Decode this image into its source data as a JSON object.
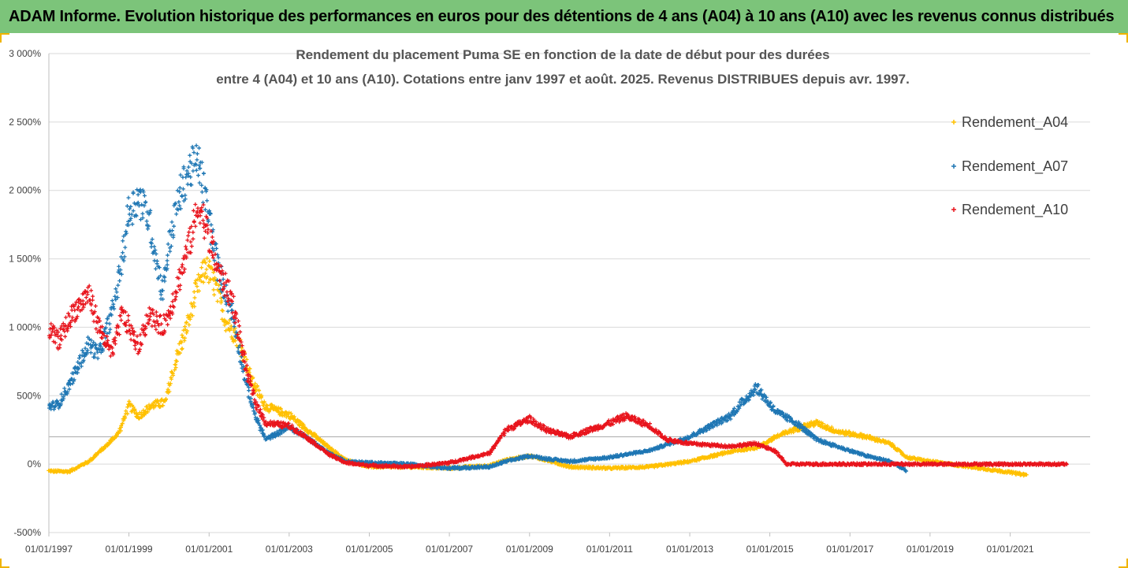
{
  "header": {
    "banner_title": "ADAM Informe. Evolution historique des performances en euros pour des détentions de 4 ans (A04) à 10 ans (A10) avec les revenus connus distribués"
  },
  "chart_data": {
    "type": "scatter",
    "title_line1": "Rendement du placement Puma SE en fonction de la date de début pour des durées",
    "title_line2": "entre 4 (A04) et 10 ans (A10). Cotations entre janv 1997 et août. 2025. Revenus DISTRIBUES depuis avr. 1997.",
    "y_ticks": [
      "3 000%",
      "2 500%",
      "2 000%",
      "1 500%",
      "1 000%",
      "500%",
      "0%",
      "-500%"
    ],
    "y_tick_values": [
      3000,
      2500,
      2000,
      1500,
      1000,
      500,
      0,
      -500
    ],
    "x_ticks": [
      "01/01/1997",
      "01/01/1999",
      "01/01/2001",
      "01/01/2003",
      "01/01/2005",
      "01/01/2007",
      "01/01/2009",
      "01/01/2011",
      "01/01/2013",
      "01/01/2015",
      "01/01/2017",
      "01/01/2019",
      "01/01/2021"
    ],
    "x_tick_years": [
      1997,
      1999,
      2001,
      2003,
      2005,
      2007,
      2009,
      2011,
      2013,
      2015,
      2017,
      2019,
      2021
    ],
    "xlim": [
      "1997-01-01",
      "2022-12-31"
    ],
    "ylim": [
      -500,
      3000
    ],
    "reference_line": 200,
    "grid": "horizontal",
    "legend_position": "right",
    "series": [
      {
        "name": "Rendement_A04",
        "color": "#ffc000",
        "points": [
          [
            "1997-01-01",
            -50
          ],
          [
            "1997-07-01",
            -55
          ],
          [
            "1998-01-01",
            20
          ],
          [
            "1998-06-01",
            130
          ],
          [
            "1998-10-01",
            230
          ],
          [
            "1999-01-01",
            430
          ],
          [
            "1999-04-01",
            350
          ],
          [
            "1999-08-01",
            430
          ],
          [
            "1999-12-01",
            450
          ],
          [
            "2000-03-01",
            750
          ],
          [
            "2000-07-01",
            1050
          ],
          [
            "2000-09-01",
            1250
          ],
          [
            "2000-12-01",
            1450
          ],
          [
            "2001-03-01",
            1300
          ],
          [
            "2001-06-01",
            1050
          ],
          [
            "2001-10-01",
            900
          ],
          [
            "2002-02-01",
            600
          ],
          [
            "2002-06-01",
            420
          ],
          [
            "2003-01-01",
            360
          ],
          [
            "2003-06-01",
            260
          ],
          [
            "2004-01-01",
            120
          ],
          [
            "2004-06-01",
            30
          ],
          [
            "2005-01-01",
            -20
          ],
          [
            "2006-01-01",
            -20
          ],
          [
            "2007-01-01",
            -30
          ],
          [
            "2008-01-01",
            -10
          ],
          [
            "2008-06-01",
            30
          ],
          [
            "2009-01-01",
            60
          ],
          [
            "2009-06-01",
            30
          ],
          [
            "2010-01-01",
            -20
          ],
          [
            "2011-01-01",
            -30
          ],
          [
            "2012-01-01",
            -20
          ],
          [
            "2013-01-01",
            20
          ],
          [
            "2014-01-01",
            90
          ],
          [
            "2014-09-01",
            120
          ],
          [
            "2015-03-01",
            200
          ],
          [
            "2015-09-01",
            260
          ],
          [
            "2016-03-01",
            300
          ],
          [
            "2016-09-01",
            240
          ],
          [
            "2017-06-01",
            200
          ],
          [
            "2018-01-01",
            150
          ],
          [
            "2018-06-01",
            50
          ],
          [
            "2019-01-01",
            20
          ],
          [
            "2020-01-01",
            -20
          ],
          [
            "2021-01-01",
            -60
          ],
          [
            "2021-06-01",
            -80
          ]
        ]
      },
      {
        "name": "Rendement_A07",
        "color": "#1f77b4",
        "points": [
          [
            "1997-01-01",
            420
          ],
          [
            "1997-04-01",
            440
          ],
          [
            "1997-08-01",
            620
          ],
          [
            "1998-01-01",
            880
          ],
          [
            "1998-04-01",
            800
          ],
          [
            "1998-08-01",
            1100
          ],
          [
            "1998-11-01",
            1500
          ],
          [
            "1999-01-01",
            1850
          ],
          [
            "1999-04-01",
            1950
          ],
          [
            "1999-07-01",
            1800
          ],
          [
            "1999-11-01",
            1250
          ],
          [
            "2000-01-01",
            1600
          ],
          [
            "2000-04-01",
            1950
          ],
          [
            "2000-07-01",
            2150
          ],
          [
            "2000-10-01",
            2200
          ],
          [
            "2001-01-01",
            1800
          ],
          [
            "2001-04-01",
            1400
          ],
          [
            "2001-08-01",
            1100
          ],
          [
            "2001-12-01",
            600
          ],
          [
            "2002-03-01",
            350
          ],
          [
            "2002-06-01",
            180
          ],
          [
            "2003-01-01",
            270
          ],
          [
            "2003-06-01",
            200
          ],
          [
            "2004-01-01",
            80
          ],
          [
            "2004-06-01",
            20
          ],
          [
            "2005-01-01",
            10
          ],
          [
            "2006-01-01",
            0
          ],
          [
            "2007-01-01",
            -30
          ],
          [
            "2008-01-01",
            -20
          ],
          [
            "2008-06-01",
            20
          ],
          [
            "2009-01-01",
            60
          ],
          [
            "2009-06-01",
            40
          ],
          [
            "2010-01-01",
            20
          ],
          [
            "2011-01-01",
            50
          ],
          [
            "2012-01-01",
            100
          ],
          [
            "2013-01-01",
            200
          ],
          [
            "2014-01-01",
            350
          ],
          [
            "2014-09-01",
            560
          ],
          [
            "2015-03-01",
            380
          ],
          [
            "2015-09-01",
            300
          ],
          [
            "2016-03-01",
            180
          ],
          [
            "2016-09-01",
            130
          ],
          [
            "2017-06-01",
            60
          ],
          [
            "2018-01-01",
            20
          ],
          [
            "2018-06-01",
            -50
          ]
        ]
      },
      {
        "name": "Rendement_A10",
        "color": "#e8141c",
        "points": [
          [
            "1997-01-01",
            980
          ],
          [
            "1997-04-01",
            900
          ],
          [
            "1997-08-01",
            1100
          ],
          [
            "1998-01-01",
            1250
          ],
          [
            "1998-04-01",
            1000
          ],
          [
            "1998-08-01",
            800
          ],
          [
            "1998-11-01",
            1100
          ],
          [
            "1999-01-01",
            1000
          ],
          [
            "1999-04-01",
            850
          ],
          [
            "1999-07-01",
            1100
          ],
          [
            "1999-11-01",
            1000
          ],
          [
            "2000-01-01",
            1100
          ],
          [
            "2000-04-01",
            1350
          ],
          [
            "2000-07-01",
            1600
          ],
          [
            "2000-10-01",
            1900
          ],
          [
            "2001-01-01",
            1650
          ],
          [
            "2001-04-01",
            1400
          ],
          [
            "2001-08-01",
            1200
          ],
          [
            "2001-12-01",
            700
          ],
          [
            "2002-03-01",
            450
          ],
          [
            "2002-06-01",
            300
          ],
          [
            "2003-01-01",
            280
          ],
          [
            "2003-06-01",
            200
          ],
          [
            "2004-01-01",
            70
          ],
          [
            "2004-06-01",
            10
          ],
          [
            "2005-01-01",
            -10
          ],
          [
            "2006-01-01",
            -20
          ],
          [
            "2007-01-01",
            10
          ],
          [
            "2008-01-01",
            80
          ],
          [
            "2008-06-01",
            250
          ],
          [
            "2009-01-01",
            330
          ],
          [
            "2009-06-01",
            250
          ],
          [
            "2010-01-01",
            200
          ],
          [
            "2011-01-01",
            300
          ],
          [
            "2011-06-01",
            350
          ],
          [
            "2012-01-01",
            280
          ],
          [
            "2012-06-01",
            180
          ],
          [
            "2013-01-01",
            150
          ],
          [
            "2014-01-01",
            130
          ],
          [
            "2014-09-01",
            150
          ],
          [
            "2015-03-01",
            90
          ],
          [
            "2015-06-01",
            0
          ],
          [
            "2016-01-01",
            0
          ],
          [
            "2018-01-01",
            0
          ],
          [
            "2020-01-01",
            0
          ],
          [
            "2022-06-01",
            0
          ]
        ]
      }
    ]
  }
}
